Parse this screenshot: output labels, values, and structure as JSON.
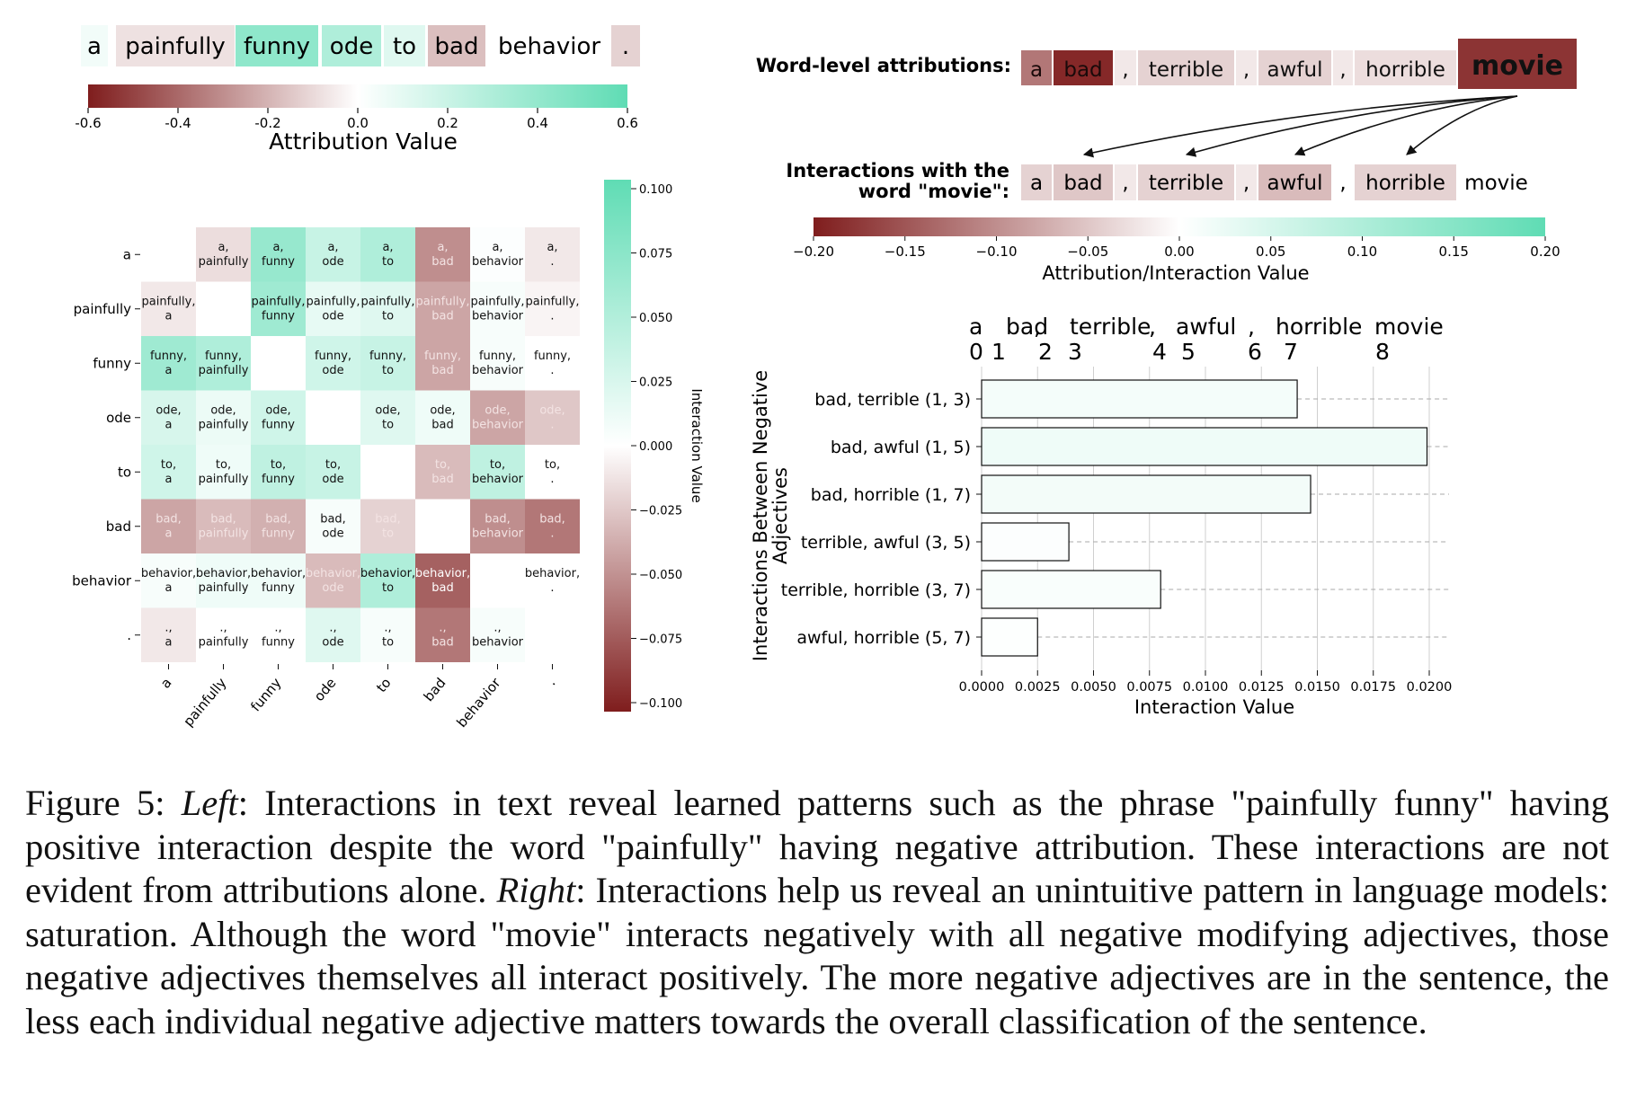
{
  "colors": {
    "negative_max": "#7f1d1d",
    "neutral": "#ffffff",
    "positive_max": "#5fdcb4"
  },
  "left": {
    "tokens": [
      "a",
      "painfully",
      "funny",
      "ode",
      "to",
      "bad",
      "behavior",
      "."
    ],
    "token_attributions": [
      0.05,
      -0.08,
      0.42,
      0.3,
      0.12,
      -0.17,
      0.0,
      -0.12
    ],
    "attribution_colorbar": {
      "label": "Attribution Value",
      "range": [
        -0.6,
        0.6
      ],
      "ticks": [
        "-0.6",
        "-0.4",
        "-0.2",
        "0.0",
        "0.2",
        "0.4",
        "0.6"
      ]
    },
    "heatmap": {
      "labels": [
        "a",
        "painfully",
        "funny",
        "ode",
        "to",
        "bad",
        "behavior",
        "."
      ],
      "matrix": [
        [
          null,
          -0.015,
          0.065,
          0.035,
          0.05,
          -0.05,
          0.002,
          -0.01
        ],
        [
          -0.01,
          null,
          0.06,
          0.015,
          0.02,
          -0.04,
          0.005,
          -0.005
        ],
        [
          0.06,
          0.05,
          null,
          0.03,
          0.035,
          -0.04,
          0.005,
          0.0
        ],
        [
          0.025,
          0.012,
          0.03,
          null,
          0.02,
          0.01,
          -0.04,
          -0.025
        ],
        [
          0.03,
          0.01,
          0.04,
          0.035,
          null,
          -0.03,
          0.04,
          0.0
        ],
        [
          -0.04,
          -0.03,
          -0.035,
          0.005,
          -0.02,
          null,
          -0.05,
          -0.06
        ],
        [
          0.005,
          0.01,
          0.01,
          -0.03,
          0.05,
          -0.07,
          null,
          0.0
        ],
        [
          -0.01,
          0.0,
          0.0,
          0.02,
          0.005,
          -0.06,
          0.005,
          null
        ]
      ],
      "colorbar_label": "Interaction Value",
      "colorbar_range": [
        -0.1,
        0.1
      ],
      "colorbar_ticks": [
        "0.100",
        "0.075",
        "0.050",
        "0.025",
        "0.000",
        "−0.025",
        "−0.050",
        "−0.075",
        "−0.100"
      ]
    }
  },
  "right": {
    "word_attr_label": "Word-level attributions:",
    "word_tokens": [
      "a",
      "bad",
      ",",
      "terrible",
      ",",
      "awful",
      ",",
      "horrible",
      "movie"
    ],
    "word_attr_values": [
      -0.12,
      -0.19,
      -0.02,
      -0.04,
      -0.02,
      -0.04,
      -0.02,
      -0.03,
      -0.18
    ],
    "interaction_label_line1": "Interactions with the",
    "interaction_label_line2": "word \"movie\":",
    "interaction_values": [
      -0.04,
      -0.05,
      -0.02,
      -0.04,
      -0.02,
      -0.06,
      0.0,
      -0.04,
      0.0
    ],
    "colorbar": {
      "label": "Attribution/Interaction Value",
      "range": [
        -0.2,
        0.2
      ],
      "ticks": [
        "−0.20",
        "−0.15",
        "−0.10",
        "−0.05",
        "0.00",
        "0.05",
        "0.10",
        "0.15",
        "0.20"
      ]
    },
    "index_words": [
      "a",
      "bad",
      ",",
      "terrible",
      ",",
      "awful",
      ",",
      "horrible",
      "movie"
    ],
    "index_numbers": [
      "0",
      "1",
      "2",
      "3",
      "4",
      "5",
      "6",
      "7",
      "8"
    ]
  },
  "chart_data": {
    "type": "bar",
    "orientation": "horizontal",
    "categories": [
      "bad, terrible (1, 3)",
      "bad, awful (1, 5)",
      "bad, horrible (1, 7)",
      "terrible, awful (3, 5)",
      "terrible, horrible (3, 7)",
      "awful, horrible (5, 7)"
    ],
    "values": [
      0.0141,
      0.0199,
      0.0147,
      0.0039,
      0.008,
      0.0025
    ],
    "xlabel": "Interaction Value",
    "ylabel": "Interactions Between Negative Adjectives",
    "xlim": [
      0.0,
      0.02
    ],
    "xticks": [
      "0.0000",
      "0.0025",
      "0.0050",
      "0.0075",
      "0.0100",
      "0.0125",
      "0.0150",
      "0.0175",
      "0.0200"
    ],
    "grid": true
  },
  "caption": {
    "fig": "Figure 5:",
    "left_em": "Left",
    "left_text": ": Interactions in text reveal learned patterns such as the phrase \"painfully funny\" having positive interaction despite the word \"painfully\" having negative attribution.  These interactions are not evident from attributions alone.",
    "right_em": "Right",
    "right_text": ": Interactions help us reveal an unintuitive pattern in language models: saturation. Although the word \"movie\" interacts negatively with all negative modifying adjectives, those negative adjectives themselves all interact positively. The more negative adjectives are in the sentence, the less each individual negative adjective matters towards the overall classification of the sentence."
  }
}
